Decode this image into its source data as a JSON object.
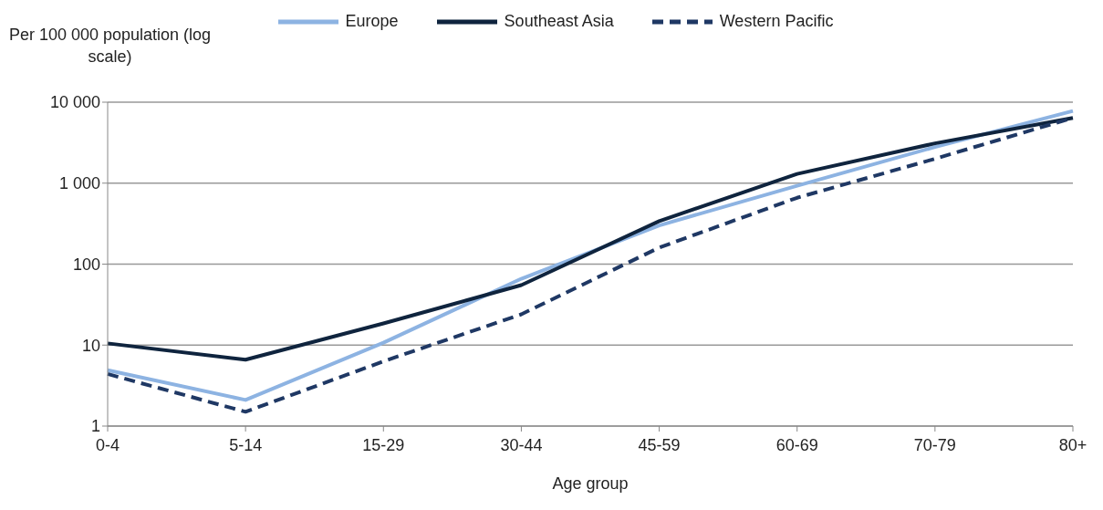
{
  "chart_data": {
    "type": "line",
    "ylabel": "Per 100 000 population (log scale)",
    "xlabel": "Age group",
    "categories": [
      "0-4",
      "5-14",
      "15-29",
      "30-44",
      "45-59",
      "60-69",
      "70-79",
      "80+"
    ],
    "series": [
      {
        "name": "Europe",
        "color": "#8db3e2",
        "line_style": "solid",
        "values": [
          4.9,
          2.1,
          10.7,
          66,
          300,
          930,
          2800,
          7800
        ]
      },
      {
        "name": "Southeast Asia",
        "color": "#0f243e",
        "line_style": "solid",
        "values": [
          10.5,
          6.6,
          18.5,
          55,
          340,
          1300,
          3100,
          6400
        ]
      },
      {
        "name": "Western Pacific",
        "color": "#1f3864",
        "line_style": "dashed",
        "values": [
          4.4,
          1.5,
          6.3,
          24,
          160,
          660,
          2000,
          6400
        ]
      }
    ],
    "log": "y",
    "ylim": [
      1,
      10000
    ],
    "yticks": [
      1,
      10,
      100,
      {
        "value": 1000,
        "label": "1 000"
      },
      {
        "value": 10000,
        "label": "10 000"
      }
    ],
    "grid": "y",
    "legend": "top",
    "marker": "none"
  }
}
